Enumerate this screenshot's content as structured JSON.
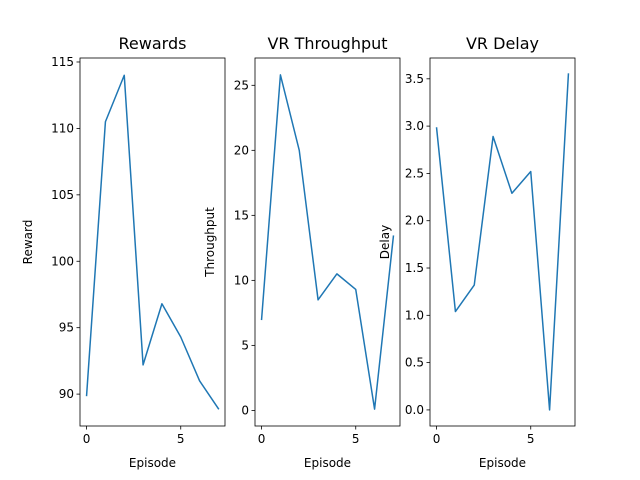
{
  "chart_data": [
    {
      "type": "line",
      "title": "Rewards",
      "xlabel": "Episode",
      "ylabel": "Reward",
      "x": [
        0,
        1,
        2,
        3,
        4,
        5,
        6,
        7
      ],
      "series": [
        {
          "values": [
            89.9,
            110.5,
            114.0,
            92.2,
            96.8,
            94.3,
            91.0,
            88.9
          ],
          "color": "#1f77b4"
        }
      ],
      "xlim": [
        -0.35,
        7.35
      ],
      "ylim": [
        87.6,
        115.3
      ],
      "xticks": [
        0,
        5
      ],
      "yticks": [
        90,
        95,
        100,
        105,
        110,
        115
      ],
      "grid": false,
      "legend": "none"
    },
    {
      "type": "line",
      "title": "VR Throughput",
      "xlabel": "Episode",
      "ylabel": "Throughput",
      "x": [
        0,
        1,
        2,
        3,
        4,
        5,
        6,
        7
      ],
      "series": [
        {
          "values": [
            7.0,
            25.8,
            20.0,
            8.5,
            10.5,
            9.3,
            0.1,
            13.4
          ],
          "color": "#1f77b4"
        }
      ],
      "xlim": [
        -0.35,
        7.35
      ],
      "ylim": [
        -1.2,
        27.1
      ],
      "xticks": [
        0,
        5
      ],
      "yticks": [
        0,
        5,
        10,
        15,
        20,
        25
      ],
      "grid": false,
      "legend": "none"
    },
    {
      "type": "line",
      "title": "VR Delay",
      "xlabel": "Episode",
      "ylabel": "Delay",
      "x": [
        0,
        1,
        2,
        3,
        4,
        5,
        6,
        7
      ],
      "series": [
        {
          "values": [
            2.98,
            1.04,
            1.32,
            2.89,
            2.29,
            2.52,
            0.0,
            3.55
          ],
          "color": "#1f77b4"
        }
      ],
      "xlim": [
        -0.35,
        7.35
      ],
      "ylim": [
        -0.17,
        3.72
      ],
      "xticks": [
        0,
        5
      ],
      "yticks": [
        0.0,
        0.5,
        1.0,
        1.5,
        2.0,
        2.5,
        3.0,
        3.5
      ],
      "tick_decimals": 1,
      "grid": false,
      "legend": "none"
    }
  ]
}
